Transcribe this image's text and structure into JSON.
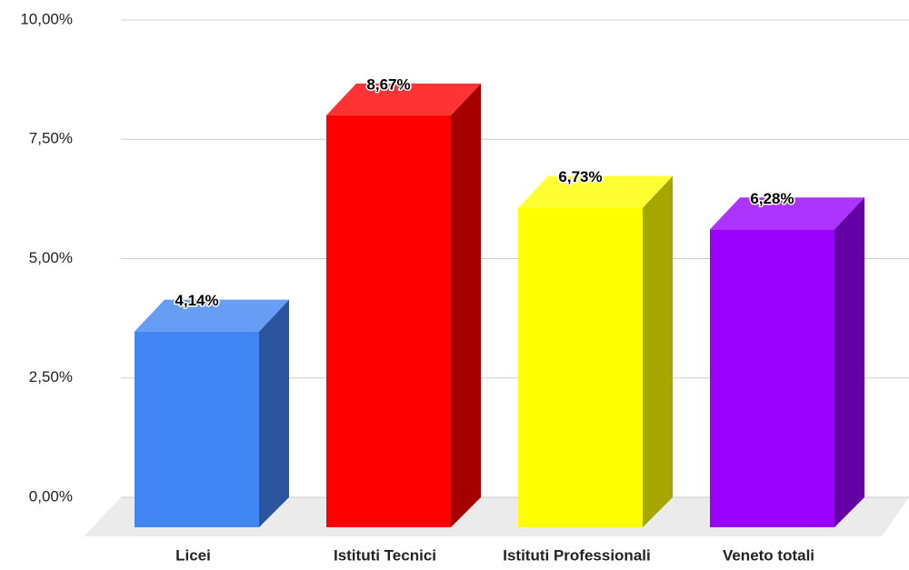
{
  "chart_data": {
    "type": "bar3d",
    "categories": [
      "Licei",
      "Istituti Tecnici",
      "Istituti Professionali",
      "Veneto totali"
    ],
    "values": [
      4.14,
      8.67,
      6.73,
      6.28
    ],
    "value_labels": [
      "4,14%",
      "8,67%",
      "6,73%",
      "6,28%"
    ],
    "colors": [
      "#4285f4",
      "#ff0000",
      "#ffff00",
      "#9900ff"
    ],
    "ylim": [
      0,
      10
    ],
    "yticks": [
      {
        "value": 0,
        "label": "0,00%"
      },
      {
        "value": 2.5,
        "label": "2,50%"
      },
      {
        "value": 5,
        "label": "5,00%"
      },
      {
        "value": 7.5,
        "label": "7,50%"
      },
      {
        "value": 10,
        "label": "10,00%"
      }
    ],
    "grid": true
  }
}
